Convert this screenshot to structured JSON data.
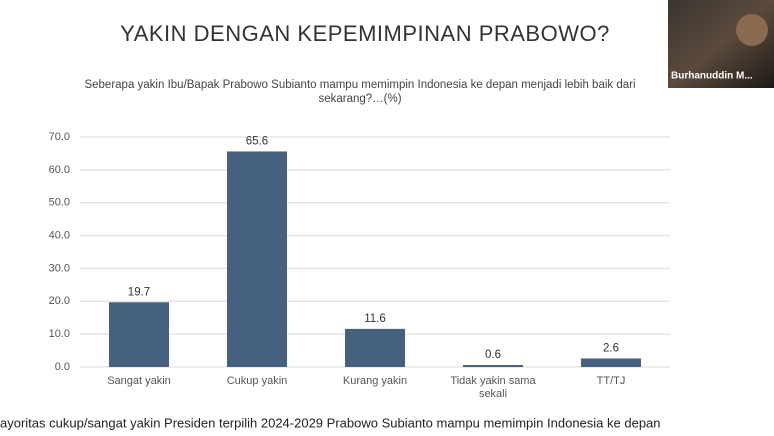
{
  "chart_data": {
    "type": "bar",
    "title": "YAKIN DENGAN KEPEMIMPINAN PRABOWO?",
    "subtitle": "Seberapa yakin Ibu/Bapak Prabowo Subianto mampu memimpin Indonesia ke depan menjadi lebih baik dari sekarang?…(%)",
    "categories": [
      "Sangat yakin",
      "Cukup yakin",
      "Kurang yakin",
      "Tidak yakin sama sekali",
      "TT/TJ"
    ],
    "values": [
      19.7,
      65.6,
      11.6,
      0.6,
      2.6
    ],
    "color": "#46607f",
    "ylim": [
      0,
      70
    ],
    "yticks": [
      {
        "value": 0,
        "label": "0.0"
      },
      {
        "value": 10,
        "label": "10.0"
      },
      {
        "value": 20,
        "label": "20.0"
      },
      {
        "value": 30,
        "label": "30.0"
      },
      {
        "value": 40,
        "label": "40.0"
      },
      {
        "value": 50,
        "label": "50.0"
      },
      {
        "value": 60,
        "label": "60.0"
      },
      {
        "value": 70,
        "label": "70.0"
      }
    ],
    "grid": true
  },
  "footnote": "ayoritas cukup/sangat yakin Presiden terpilih 2024-2029 Prabowo Subianto mampu memimpin Indonesia ke depan",
  "video_overlay": {
    "name": "Burhanuddin M..."
  }
}
